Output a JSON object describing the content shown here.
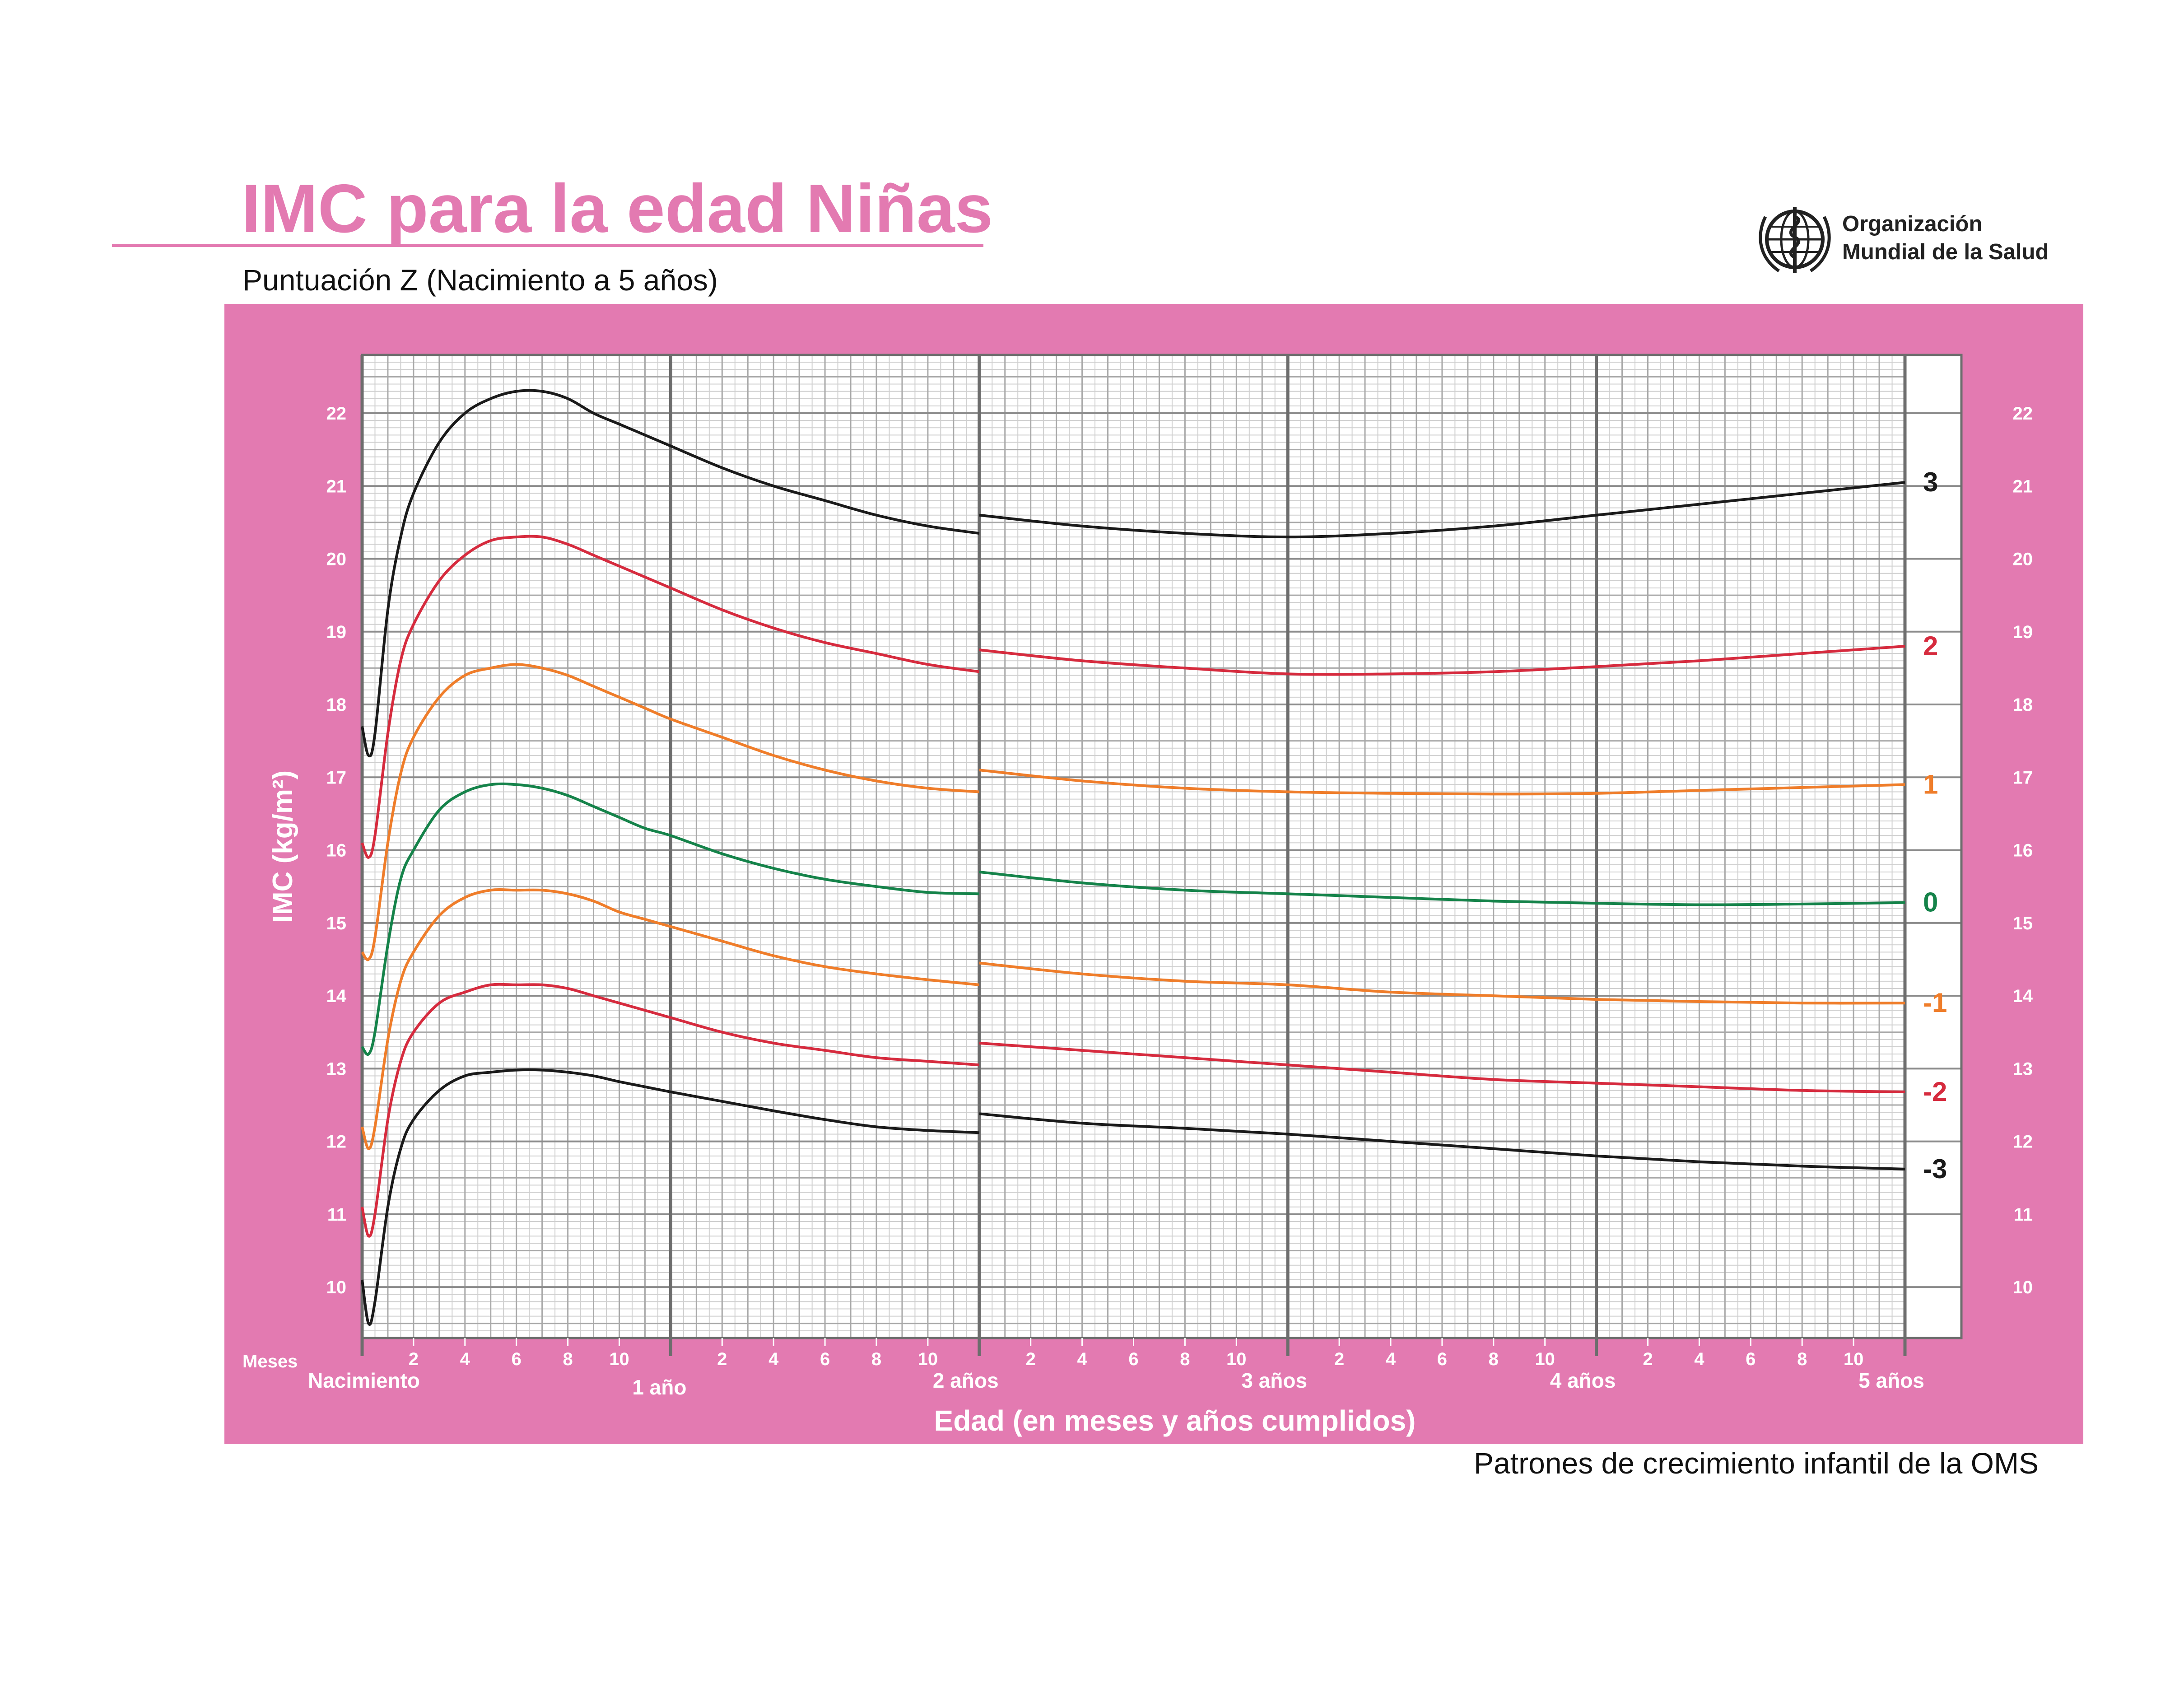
{
  "header": {
    "title": "IMC para la edad Niñas",
    "subtitle": "Puntuación Z (Nacimiento a 5 años)"
  },
  "logo": {
    "line1": "Organización",
    "line2": "Mundial de la Salud",
    "icon": "who-emblem-icon"
  },
  "footer": {
    "text": "Patrones de crecimiento infantil de la OMS"
  },
  "colors": {
    "panel": "#e37ab1",
    "plot_bg": "#ffffff",
    "z3": "#1a1a1a",
    "z2": "#d62b3e",
    "z1": "#ef7d2a",
    "z0": "#15834a"
  },
  "chart_data": {
    "type": "line",
    "title": "IMC para la edad Niñas",
    "subtitle": "Puntuación Z (Nacimiento a 5 años)",
    "xlabel": "Edad (en meses y años cumplidos)",
    "ylabel": "IMC (kg/m²)",
    "xlim": [
      0,
      60
    ],
    "ylim": [
      9.3,
      22.8
    ],
    "yticks": [
      10,
      11,
      12,
      13,
      14,
      15,
      16,
      17,
      18,
      19,
      20,
      21,
      22
    ],
    "month_ticks": [
      "2",
      "4",
      "6",
      "8",
      "10"
    ],
    "months_label": "Meses",
    "year_labels": [
      {
        "x": 0,
        "label": "Nacimiento"
      },
      {
        "x": 12,
        "label": "1 año"
      },
      {
        "x": 24,
        "label": "2 años"
      },
      {
        "x": 36,
        "label": "3 años"
      },
      {
        "x": 48,
        "label": "4 años"
      },
      {
        "x": 60,
        "label": "5 años"
      }
    ],
    "grid": true,
    "segment_break": 24,
    "series": [
      {
        "name": "3",
        "color": "#1a1a1a",
        "label_color": "#1a1a1a",
        "x": [
          0,
          0.25,
          0.5,
          1,
          1.5,
          2,
          3,
          4,
          5,
          6,
          7,
          8,
          9,
          10,
          11,
          12,
          14,
          16,
          18,
          20,
          22,
          24,
          24,
          28,
          32,
          36,
          40,
          44,
          48,
          52,
          56,
          60
        ],
        "y": [
          17.7,
          17.3,
          17.6,
          19.3,
          20.3,
          20.9,
          21.6,
          22.0,
          22.2,
          22.3,
          22.3,
          22.2,
          22.0,
          21.85,
          21.7,
          21.55,
          21.25,
          21.0,
          20.8,
          20.6,
          20.45,
          20.35,
          20.6,
          20.45,
          20.35,
          20.3,
          20.35,
          20.45,
          20.6,
          20.75,
          20.9,
          21.05
        ]
      },
      {
        "name": "2",
        "color": "#d62b3e",
        "label_color": "#d62b3e",
        "x": [
          0,
          0.25,
          0.5,
          1,
          1.5,
          2,
          3,
          4,
          5,
          6,
          7,
          8,
          9,
          10,
          11,
          12,
          14,
          16,
          18,
          20,
          22,
          24,
          24,
          28,
          32,
          36,
          40,
          44,
          48,
          52,
          56,
          60
        ],
        "y": [
          16.1,
          15.9,
          16.2,
          17.6,
          18.6,
          19.1,
          19.7,
          20.05,
          20.25,
          20.3,
          20.3,
          20.2,
          20.05,
          19.9,
          19.75,
          19.6,
          19.3,
          19.05,
          18.85,
          18.7,
          18.55,
          18.45,
          18.75,
          18.6,
          18.5,
          18.42,
          18.42,
          18.45,
          18.52,
          18.6,
          18.7,
          18.8
        ]
      },
      {
        "name": "1",
        "color": "#ef7d2a",
        "label_color": "#ef7d2a",
        "x": [
          0,
          0.25,
          0.5,
          1,
          1.5,
          2,
          3,
          4,
          5,
          6,
          7,
          8,
          9,
          10,
          11,
          12,
          14,
          16,
          18,
          20,
          22,
          24,
          24,
          28,
          32,
          36,
          40,
          44,
          48,
          52,
          56,
          60
        ],
        "y": [
          14.6,
          14.5,
          14.8,
          16.1,
          17.05,
          17.55,
          18.1,
          18.4,
          18.5,
          18.55,
          18.5,
          18.4,
          18.25,
          18.1,
          17.95,
          17.8,
          17.55,
          17.3,
          17.1,
          16.95,
          16.85,
          16.8,
          17.1,
          16.95,
          16.85,
          16.8,
          16.78,
          16.77,
          16.78,
          16.82,
          16.86,
          16.9
        ]
      },
      {
        "name": "0",
        "color": "#15834a",
        "label_color": "#15834a",
        "x": [
          0,
          0.25,
          0.5,
          1,
          1.5,
          2,
          3,
          4,
          5,
          6,
          7,
          8,
          9,
          10,
          11,
          12,
          14,
          16,
          18,
          20,
          22,
          24,
          24,
          28,
          32,
          36,
          40,
          44,
          48,
          52,
          56,
          60
        ],
        "y": [
          13.3,
          13.2,
          13.5,
          14.7,
          15.6,
          16.0,
          16.55,
          16.8,
          16.9,
          16.9,
          16.85,
          16.75,
          16.6,
          16.45,
          16.3,
          16.2,
          15.95,
          15.75,
          15.6,
          15.5,
          15.42,
          15.4,
          15.7,
          15.55,
          15.45,
          15.4,
          15.35,
          15.3,
          15.27,
          15.25,
          15.26,
          15.28
        ]
      },
      {
        "name": "-1",
        "color": "#ef7d2a",
        "label_color": "#ef7d2a",
        "x": [
          0,
          0.25,
          0.5,
          1,
          1.5,
          2,
          3,
          4,
          5,
          6,
          7,
          8,
          9,
          10,
          11,
          12,
          14,
          16,
          18,
          20,
          22,
          24,
          24,
          28,
          32,
          36,
          40,
          44,
          48,
          52,
          56,
          60
        ],
        "y": [
          12.2,
          11.9,
          12.2,
          13.4,
          14.2,
          14.6,
          15.1,
          15.35,
          15.45,
          15.45,
          15.45,
          15.4,
          15.3,
          15.15,
          15.05,
          14.95,
          14.75,
          14.55,
          14.4,
          14.3,
          14.22,
          14.15,
          14.45,
          14.3,
          14.2,
          14.15,
          14.05,
          14.0,
          13.95,
          13.92,
          13.9,
          13.9
        ]
      },
      {
        "name": "-2",
        "color": "#d62b3e",
        "label_color": "#d62b3e",
        "x": [
          0,
          0.25,
          0.5,
          1,
          1.5,
          2,
          3,
          4,
          5,
          6,
          7,
          8,
          9,
          10,
          11,
          12,
          14,
          16,
          18,
          20,
          22,
          24,
          24,
          28,
          32,
          36,
          40,
          44,
          48,
          52,
          56,
          60
        ],
        "y": [
          11.1,
          10.7,
          11.0,
          12.3,
          13.1,
          13.5,
          13.9,
          14.05,
          14.15,
          14.15,
          14.15,
          14.1,
          14.0,
          13.9,
          13.8,
          13.7,
          13.5,
          13.35,
          13.25,
          13.15,
          13.1,
          13.05,
          13.35,
          13.25,
          13.15,
          13.05,
          12.95,
          12.85,
          12.8,
          12.75,
          12.7,
          12.68
        ]
      },
      {
        "name": "-3",
        "color": "#1a1a1a",
        "label_color": "#1a1a1a",
        "x": [
          0,
          0.25,
          0.5,
          1,
          1.5,
          2,
          3,
          4,
          5,
          6,
          7,
          8,
          9,
          10,
          11,
          12,
          14,
          16,
          18,
          20,
          22,
          24,
          24,
          28,
          32,
          36,
          40,
          44,
          48,
          52,
          56,
          60
        ],
        "y": [
          10.1,
          9.5,
          9.8,
          11.1,
          11.9,
          12.3,
          12.7,
          12.9,
          12.95,
          12.98,
          12.98,
          12.95,
          12.9,
          12.82,
          12.75,
          12.68,
          12.55,
          12.42,
          12.3,
          12.2,
          12.15,
          12.12,
          12.38,
          12.25,
          12.18,
          12.1,
          12.0,
          11.9,
          11.8,
          11.72,
          11.66,
          11.62
        ]
      }
    ]
  }
}
